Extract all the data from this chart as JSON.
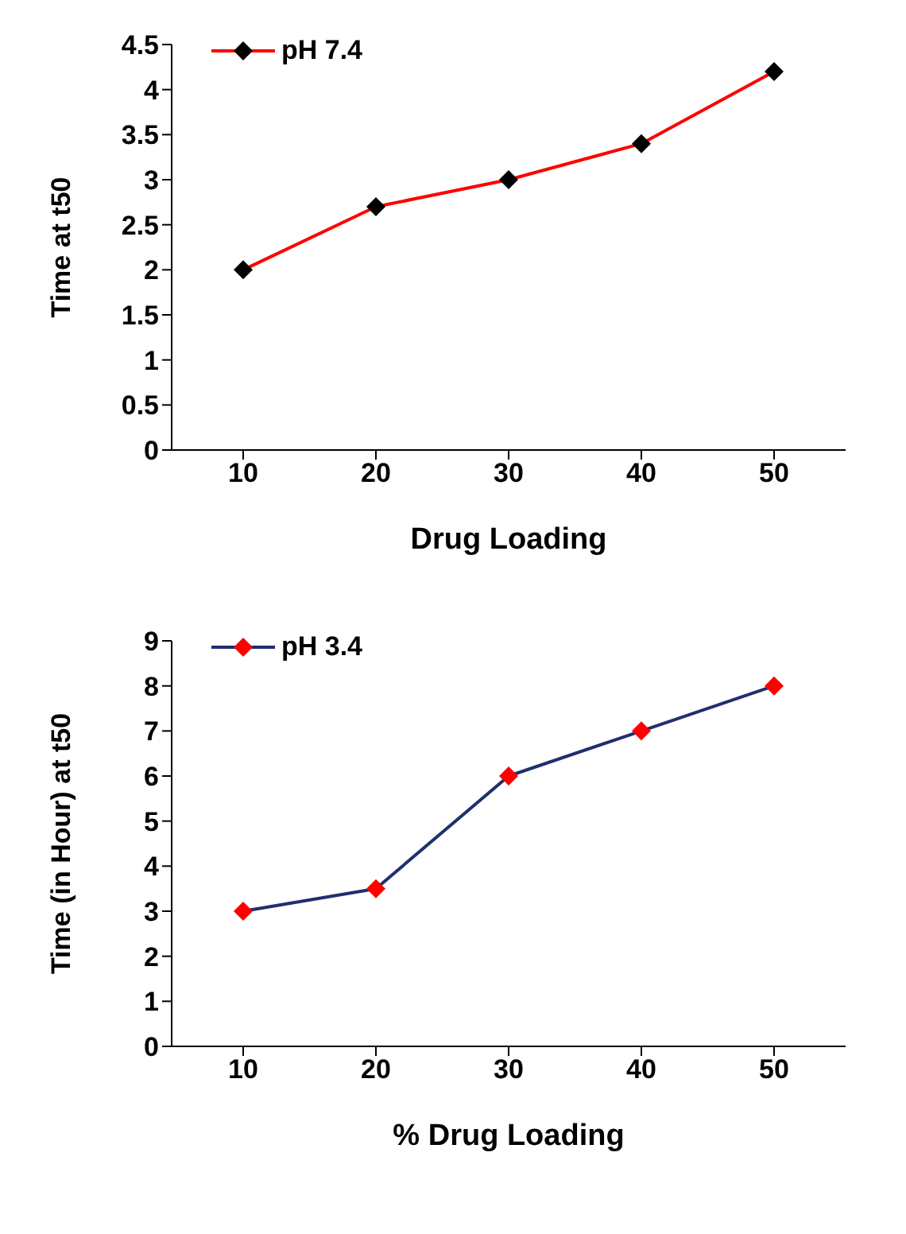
{
  "chart_data": [
    {
      "type": "line",
      "xlabel": "Drug Loading",
      "ylabel": "Time at t50",
      "categories": [
        "10",
        "20",
        "30",
        "40",
        "50"
      ],
      "series": [
        {
          "name": "pH 7.4",
          "color": "#ff0000",
          "colors": [
            "#000000",
            "#000000",
            "#000000",
            "#000000",
            "#000000"
          ],
          "values": [
            2,
            2.7,
            3,
            3.4,
            4.2
          ]
        }
      ],
      "ylim": [
        0,
        4.5
      ],
      "yticks": [
        0,
        0.5,
        1,
        1.5,
        2,
        2.5,
        3,
        3.5,
        4,
        4.5
      ],
      "grid": false,
      "legend": "top left",
      "marker": "diamond",
      "line_style": "solid"
    },
    {
      "type": "line",
      "xlabel": "% Drug Loading",
      "ylabel": "Time (in Hour) at t50",
      "categories": [
        "10",
        "20",
        "30",
        "40",
        "50"
      ],
      "series": [
        {
          "name": "pH 3.4",
          "color": "#1f2f6e",
          "colors": [
            "#ff0000",
            "#ff0000",
            "#ff0000",
            "#ff0000",
            "#ff0000"
          ],
          "values": [
            3,
            3.5,
            6,
            7,
            8
          ]
        }
      ],
      "ylim": [
        0,
        9
      ],
      "yticks": [
        0,
        1,
        2,
        3,
        4,
        5,
        6,
        7,
        8,
        9
      ],
      "grid": false,
      "legend": "top left",
      "marker": "diamond",
      "line_style": "solid"
    }
  ]
}
